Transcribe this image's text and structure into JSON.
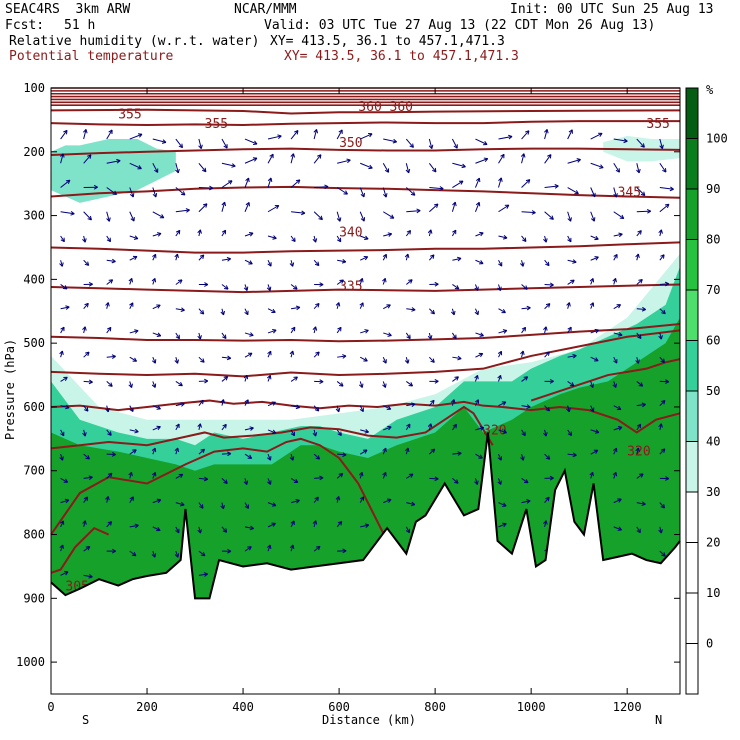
{
  "header": {
    "model": "SEAC4RS  3km ARW",
    "org": "NCAR/MMM",
    "init": "Init: 00 UTC Sun 25 Aug 13",
    "fcst_label": "Fcst:",
    "fcst_value": "51 h",
    "valid": "Valid: 03 UTC Tue 27 Aug 13 (22 CDT Mon 26 Aug 13)",
    "field1": "Relative humidity (w.r.t. water)",
    "field1_xy": "XY= 413.5, 36.1 to 457.1,471.3",
    "field2": "Potential temperature",
    "field2_xy": "XY= 413.5, 36.1 to 457.1,471.3"
  },
  "colors": {
    "theta": "#8b1a1a",
    "wind": "#00007a",
    "ground": "#000000",
    "rh_scale": [
      "#ffffff",
      "#ffffff",
      "#ffffff",
      "#ffffff",
      "#ffffff",
      "#c8f5e8",
      "#7fe3c9",
      "#35cf9a",
      "#4ede6b",
      "#27c23f",
      "#15a12a",
      "#0a7d1d",
      "#035e14"
    ]
  },
  "chart_data": {
    "type": "heatmap",
    "xlabel": "Distance (km)",
    "ylabel": "Pressure (hPa)",
    "xlim": [
      0,
      1310
    ],
    "ylim": [
      1050,
      100
    ],
    "x_ticks": [
      0,
      200,
      400,
      600,
      800,
      1000,
      1200
    ],
    "y_ticks": [
      100,
      200,
      300,
      400,
      500,
      600,
      700,
      800,
      900,
      1000
    ],
    "x_end_labels": {
      "left": "S",
      "right": "N"
    },
    "colorbar": {
      "unit": "%",
      "levels": [
        100,
        90,
        80,
        70,
        60,
        50,
        40,
        30,
        20,
        10,
        0
      ],
      "colors_top_to_bottom": [
        "#035e14",
        "#0a7d1d",
        "#15a12a",
        "#27c23f",
        "#4ede6b",
        "#35cf9a",
        "#7fe3c9",
        "#c8f5e8",
        "#ffffff",
        "#ffffff",
        "#ffffff",
        "#ffffff"
      ]
    },
    "terrain": {
      "x": [
        0,
        30,
        60,
        100,
        140,
        170,
        200,
        240,
        270,
        280,
        300,
        330,
        350,
        400,
        450,
        500,
        550,
        600,
        650,
        700,
        740,
        760,
        780,
        820,
        860,
        890,
        910,
        930,
        960,
        990,
        1010,
        1030,
        1050,
        1070,
        1090,
        1110,
        1130,
        1150,
        1180,
        1210,
        1240,
        1270,
        1300,
        1310
      ],
      "p": [
        875,
        895,
        885,
        870,
        880,
        870,
        865,
        860,
        840,
        760,
        900,
        900,
        840,
        850,
        845,
        855,
        850,
        845,
        840,
        790,
        830,
        780,
        770,
        720,
        770,
        760,
        640,
        810,
        830,
        760,
        850,
        840,
        730,
        700,
        780,
        800,
        720,
        840,
        835,
        830,
        840,
        845,
        820,
        810
      ]
    },
    "theta_contours": [
      {
        "value": 305,
        "x": [
          0,
          20,
          50,
          90,
          120
        ],
        "p": [
          860,
          855,
          820,
          790,
          800
        ],
        "label": "305",
        "label_x": 30,
        "label_p": 880
      },
      {
        "value": 310,
        "x": [
          0,
          60,
          120,
          200,
          280,
          340,
          400,
          450,
          490,
          520,
          560,
          600,
          640,
          680,
          720,
          740
        ],
        "p": [
          800,
          735,
          710,
          720,
          690,
          670,
          665,
          670,
          655,
          650,
          660,
          680,
          720,
          780,
          840,
          850
        ]
      },
      {
        "value": 315,
        "x": [
          0,
          60,
          120,
          200,
          260,
          320,
          360,
          420,
          480,
          540,
          600,
          660,
          720,
          780,
          820,
          860,
          880,
          920
        ],
        "p": [
          665,
          660,
          655,
          660,
          650,
          640,
          648,
          645,
          640,
          632,
          635,
          645,
          648,
          640,
          620,
          600,
          610,
          660
        ]
      },
      {
        "value": 320,
        "x": [
          0,
          60,
          140,
          200,
          260,
          330,
          380,
          440,
          500,
          560,
          620,
          680,
          740,
          800,
          860,
          900,
          940,
          1000,
          1060,
          1120,
          1180,
          1220,
          1260,
          1310
        ],
        "p": [
          600,
          598,
          605,
          600,
          595,
          590,
          595,
          592,
          598,
          602,
          598,
          600,
          595,
          598,
          592,
          598,
          600,
          605,
          600,
          605,
          620,
          640,
          620,
          610
        ],
        "label": "320",
        "label_x": 900,
        "label_p": 635
      },
      {
        "value": 320,
        "x": [
          1000,
          1040,
          1080,
          1120,
          1160,
          1200,
          1240,
          1280,
          1310
        ],
        "p": [
          590,
          580,
          570,
          560,
          550,
          545,
          540,
          530,
          525
        ],
        "label": "320",
        "label_x": 1200,
        "label_p": 668
      },
      {
        "value": 325,
        "x": [
          0,
          100,
          200,
          300,
          400,
          500,
          600,
          700,
          800,
          900,
          1000,
          1100,
          1200,
          1310
        ],
        "p": [
          545,
          548,
          550,
          548,
          552,
          546,
          550,
          548,
          545,
          540,
          520,
          505,
          490,
          480
        ]
      },
      {
        "value": 330,
        "x": [
          0,
          100,
          200,
          300,
          400,
          500,
          600,
          700,
          800,
          900,
          1000,
          1100,
          1200,
          1310
        ],
        "p": [
          490,
          492,
          495,
          495,
          496,
          495,
          497,
          496,
          494,
          492,
          487,
          482,
          478,
          470
        ]
      },
      {
        "value": 335,
        "x": [
          0,
          100,
          200,
          300,
          400,
          500,
          600,
          700,
          800,
          900,
          1000,
          1100,
          1200,
          1310
        ],
        "p": [
          412,
          414,
          416,
          418,
          420,
          418,
          416,
          417,
          418,
          416,
          414,
          412,
          410,
          408
        ],
        "label": "335",
        "label_x": 600,
        "label_p": 410
      },
      {
        "value": 340,
        "x": [
          0,
          100,
          200,
          300,
          400,
          500,
          600,
          700,
          800,
          900,
          1000,
          1100,
          1200,
          1310
        ],
        "p": [
          350,
          352,
          355,
          358,
          358,
          356,
          355,
          354,
          352,
          352,
          350,
          348,
          345,
          342
        ],
        "label": "340",
        "label_x": 600,
        "label_p": 325
      },
      {
        "value": 345,
        "x": [
          0,
          100,
          200,
          300,
          400,
          500,
          600,
          700,
          800,
          900,
          1000,
          1100,
          1200,
          1310
        ],
        "p": [
          270,
          265,
          262,
          258,
          256,
          255,
          257,
          258,
          260,
          262,
          265,
          268,
          270,
          272
        ],
        "label": "345",
        "label_x": 1180,
        "label_p": 262
      },
      {
        "value": 350,
        "x": [
          0,
          100,
          200,
          300,
          400,
          500,
          600,
          700,
          800,
          900,
          1000,
          1100,
          1200,
          1310
        ],
        "p": [
          205,
          202,
          200,
          198,
          196,
          195,
          197,
          198,
          198,
          196,
          195,
          195,
          196,
          197
        ],
        "label": "350",
        "label_x": 600,
        "label_p": 185
      },
      {
        "value": 355,
        "x": [
          0,
          100,
          200,
          300,
          400,
          500,
          600,
          700,
          800,
          900,
          1000,
          1100,
          1200,
          1310
        ],
        "p": [
          155,
          157,
          158,
          157,
          158,
          156,
          155,
          154,
          155,
          155,
          153,
          152,
          152,
          152
        ],
        "label": "355",
        "label_x": 140,
        "label_p": 140
      },
      {
        "value": 355,
        "x": [
          0,
          1310
        ],
        "p": [
          155,
          152
        ],
        "label": "355",
        "label_x": 320,
        "label_p": 155
      },
      {
        "value": 355,
        "x": [
          0,
          1310
        ],
        "p": [
          155,
          152
        ],
        "label": "355",
        "label_x": 1240,
        "label_p": 155
      },
      {
        "value": 360,
        "x": [
          0,
          200,
          400,
          500,
          600,
          700,
          800,
          1000,
          1310
        ],
        "p": [
          135,
          134,
          136,
          140,
          138,
          138,
          137,
          136,
          135
        ],
        "label": "360",
        "label_x": 640,
        "label_p": 128
      },
      {
        "value": 360,
        "x": [
          0,
          1310
        ],
        "p": [
          135,
          135
        ],
        "label": "360",
        "label_x": 705,
        "label_p": 128
      }
    ],
    "rh_regions": [
      {
        "level": 80,
        "x": [
          0,
          60,
          140,
          200,
          260,
          300,
          340,
          400,
          460,
          520,
          560,
          600,
          660,
          720,
          800,
          860,
          900,
          960,
          1000,
          1060,
          1100,
          1160,
          1220,
          1280,
          1310
        ],
        "p_top": [
          640,
          660,
          670,
          680,
          690,
          700,
          690,
          690,
          690,
          660,
          660,
          670,
          680,
          660,
          640,
          600,
          640,
          620,
          600,
          580,
          570,
          560,
          530,
          500,
          460
        ]
      },
      {
        "level": 50,
        "x": [
          0,
          60,
          140,
          200,
          260,
          300,
          340,
          400,
          460,
          520,
          560,
          600,
          660,
          720,
          800,
          860,
          900,
          960,
          1000,
          1060,
          1100,
          1160,
          1220,
          1280,
          1310
        ],
        "p_top": [
          560,
          620,
          640,
          650,
          650,
          660,
          640,
          650,
          640,
          630,
          630,
          640,
          650,
          620,
          600,
          560,
          560,
          560,
          540,
          520,
          510,
          490,
          470,
          440,
          380
        ]
      },
      {
        "level": 30,
        "x": [
          0,
          100,
          200,
          300,
          400,
          500,
          600,
          700,
          800,
          900,
          1000,
          1100,
          1200,
          1310
        ],
        "p_top": [
          520,
          600,
          620,
          620,
          620,
          620,
          610,
          600,
          580,
          540,
          530,
          510,
          460,
          360
        ]
      },
      {
        "level": 40,
        "x": [
          0,
          30,
          60,
          120,
          180,
          220,
          260,
          260,
          180,
          120,
          60,
          0
        ],
        "p_top": [
          200,
          190,
          190,
          180,
          180,
          195,
          200,
          230,
          260,
          270,
          280,
          260
        ]
      },
      {
        "level": 30,
        "x": [
          1150,
          1200,
          1250,
          1310,
          1310,
          1250,
          1200,
          1150
        ],
        "p_top": [
          185,
          175,
          180,
          180,
          210,
          215,
          215,
          200
        ]
      }
    ]
  }
}
